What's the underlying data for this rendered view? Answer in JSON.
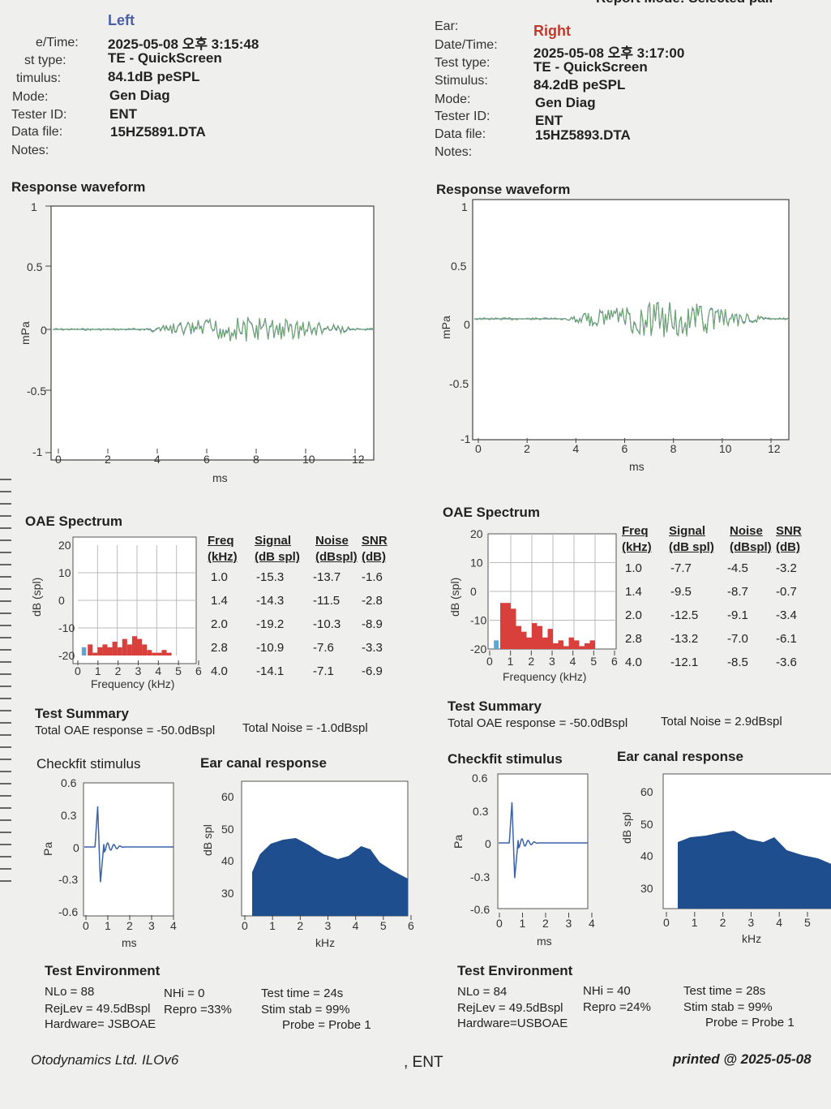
{
  "report_mode": "Report Mode:   Selected pair",
  "left": {
    "ear": "Left",
    "labels": [
      "e/Time:",
      "st type:",
      "timulus:",
      "Mode:",
      "Tester ID:",
      "Data file:",
      "Notes:"
    ],
    "values": [
      "2025-05-08 오후 3:15:48",
      "TE - QuickScreen",
      "84.1dB peSPL",
      "Gen Diag",
      "ENT",
      "15HZ5891.DTA",
      ""
    ],
    "waveform": {
      "title": "Response waveform",
      "ylabel": "mPa",
      "xlabel": "ms",
      "yticks": [
        "1",
        "0.5",
        "0",
        "-0.5",
        "-1"
      ],
      "xticks": [
        "0",
        "2",
        "4",
        "6",
        "8",
        "10",
        "12"
      ]
    },
    "spectrum": {
      "title": "OAE Spectrum",
      "ylabel": "dB (spl)",
      "xlabel": "Frequency (kHz)",
      "yticks": [
        "20",
        "10",
        "0",
        "-10",
        "-20"
      ],
      "xticks": [
        "0",
        "1",
        "2",
        "3",
        "4",
        "5",
        "6"
      ]
    },
    "table": {
      "headers": [
        [
          "Freq",
          "(kHz)"
        ],
        [
          "Signal",
          "(dB spl)"
        ],
        [
          "Noise",
          "(dBspl)"
        ],
        [
          "SNR",
          "(dB)"
        ]
      ],
      "rows": [
        [
          "1.0",
          "-15.3",
          "-13.7",
          "-1.6"
        ],
        [
          "1.4",
          "-14.3",
          "-11.5",
          "-2.8"
        ],
        [
          "2.0",
          "-19.2",
          "-10.3",
          "-8.9"
        ],
        [
          "2.8",
          "-10.9",
          "-7.6",
          "-3.3"
        ],
        [
          "4.0",
          "-14.1",
          "-7.1",
          "-6.9"
        ]
      ]
    },
    "summary": {
      "title": "Test Summary",
      "oae": "Total OAE response =  -50.0dBspl",
      "noise": "Total Noise =  -1.0dBspl"
    },
    "checkfit": {
      "title": "Checkfit stimulus",
      "ylabel": "Pa",
      "xlabel": "ms",
      "yticks": [
        "0.6",
        "0.3",
        "0",
        "-0.3",
        "-0.6"
      ],
      "xticks": [
        "0",
        "1",
        "2",
        "3",
        "4"
      ]
    },
    "ear_canal": {
      "title": "Ear canal response",
      "ylabel": "dB spl",
      "xlabel": "kHz",
      "yticks": [
        "60",
        "50",
        "40",
        "30"
      ],
      "xticks": [
        "0",
        "1",
        "2",
        "3",
        "4",
        "5",
        "6"
      ]
    },
    "environment": {
      "title": "Test Environment",
      "nlo": "NLo =  88",
      "nhi": "NHi =  0",
      "rejlev": "RejLev = 49.5dBspl",
      "repro": "Repro =33%",
      "hardware": "Hardware= JSBOAE",
      "test_time": "Test time = 24s",
      "stim_stab": "Stim stab = 99%",
      "probe": "Probe = Probe 1"
    }
  },
  "right": {
    "ear": "Right",
    "labels": [
      "Ear:",
      "Date/Time:",
      "Test type:",
      "Stimulus:",
      "Mode:",
      "Tester ID:",
      "Data file:",
      "Notes:"
    ],
    "values": [
      "2025-05-08 오후 3:17:00",
      "TE - QuickScreen",
      "84.2dB peSPL",
      "Gen Diag",
      "ENT",
      "15HZ5893.DTA",
      ""
    ],
    "waveform": {
      "title": "Response waveform",
      "ylabel": "mPa",
      "xlabel": "ms",
      "yticks": [
        "1",
        "0.5",
        "0",
        "-0.5",
        "-1"
      ],
      "xticks": [
        "0",
        "2",
        "4",
        "6",
        "8",
        "10",
        "12"
      ]
    },
    "spectrum": {
      "title": "OAE Spectrum",
      "ylabel": "dB (spl)",
      "xlabel": "Frequency (kHz)",
      "yticks": [
        "20",
        "10",
        "0",
        "-10",
        "-20"
      ],
      "xticks": [
        "0",
        "1",
        "2",
        "3",
        "4",
        "5",
        "6"
      ]
    },
    "table": {
      "headers": [
        [
          "Freq",
          "(kHz)"
        ],
        [
          "Signal",
          "(dB spl)"
        ],
        [
          "Noise",
          "(dBspl)"
        ],
        [
          "SNR",
          "(dB)"
        ]
      ],
      "rows": [
        [
          "1.0",
          "-7.7",
          "-4.5",
          "-3.2"
        ],
        [
          "1.4",
          "-9.5",
          "-8.7",
          "-0.7"
        ],
        [
          "2.0",
          "-12.5",
          "-9.1",
          "-3.4"
        ],
        [
          "2.8",
          "-13.2",
          "-7.0",
          "-6.1"
        ],
        [
          "4.0",
          "-12.1",
          "-8.5",
          "-3.6"
        ]
      ]
    },
    "summary": {
      "title": "Test Summary",
      "oae": "Total OAE response =  -50.0dBspl",
      "noise": "Total Noise =  2.9dBspl"
    },
    "checkfit": {
      "title": "Checkfit stimulus",
      "ylabel": "Pa",
      "xlabel": "ms",
      "yticks": [
        "0.6",
        "0.3",
        "0",
        "-0.3",
        "-0.6"
      ],
      "xticks": [
        "0",
        "1",
        "2",
        "3",
        "4"
      ]
    },
    "ear_canal": {
      "title": "Ear canal response",
      "ylabel": "dB spl",
      "xlabel": "kHz",
      "yticks": [
        "60",
        "50",
        "40",
        "30"
      ],
      "xticks": [
        "0",
        "1",
        "2",
        "3",
        "4",
        "5"
      ]
    },
    "environment": {
      "title": "Test Environment",
      "nlo": "NLo =  84",
      "nhi": "NHi =  40",
      "rejlev": "RejLev = 49.5dBspl",
      "repro": "Repro =24%",
      "hardware": "Hardware=USBOAE",
      "test_time": "Test time = 28s",
      "stim_stab": "Stim stab = 99%",
      "probe": "Probe = Probe 1"
    }
  },
  "footer": {
    "company": "Otodynamics Ltd. ILOv6",
    "tester": ", ENT",
    "printed": "printed @  2025-05-08"
  },
  "chart_data": [
    {
      "type": "bar",
      "name": "left-oae-spectrum",
      "categories": [
        "0.5",
        "0.75",
        "1.0",
        "1.25",
        "1.5",
        "1.75",
        "2.0",
        "2.25",
        "2.5",
        "2.75",
        "3.0",
        "3.25",
        "3.5",
        "3.75",
        "4.0",
        "4.25",
        "4.5",
        "4.75"
      ],
      "values": [
        -16,
        -19,
        -17,
        -16,
        -17,
        -15,
        -17,
        -14,
        -16,
        -13,
        -14,
        -16,
        -18,
        -19,
        -19,
        -18,
        -19,
        -20
      ],
      "ylim": [
        -20,
        20
      ],
      "xlim": [
        0,
        6
      ]
    },
    {
      "type": "bar",
      "name": "right-oae-spectrum",
      "categories": [
        "0.5",
        "0.75",
        "1.0",
        "1.25",
        "1.5",
        "1.75",
        "2.0",
        "2.25",
        "2.5",
        "2.75",
        "3.0",
        "3.25",
        "3.5",
        "3.75",
        "4.0",
        "4.25",
        "4.5",
        "4.75"
      ],
      "values": [
        -4,
        -4,
        -6,
        -12,
        -14,
        -16,
        -11,
        -12,
        -16,
        -13,
        -18,
        -17,
        -19,
        -16,
        -17,
        -19,
        -18,
        -17
      ],
      "ylim": [
        -20,
        20
      ],
      "xlim": [
        0,
        6
      ]
    }
  ]
}
